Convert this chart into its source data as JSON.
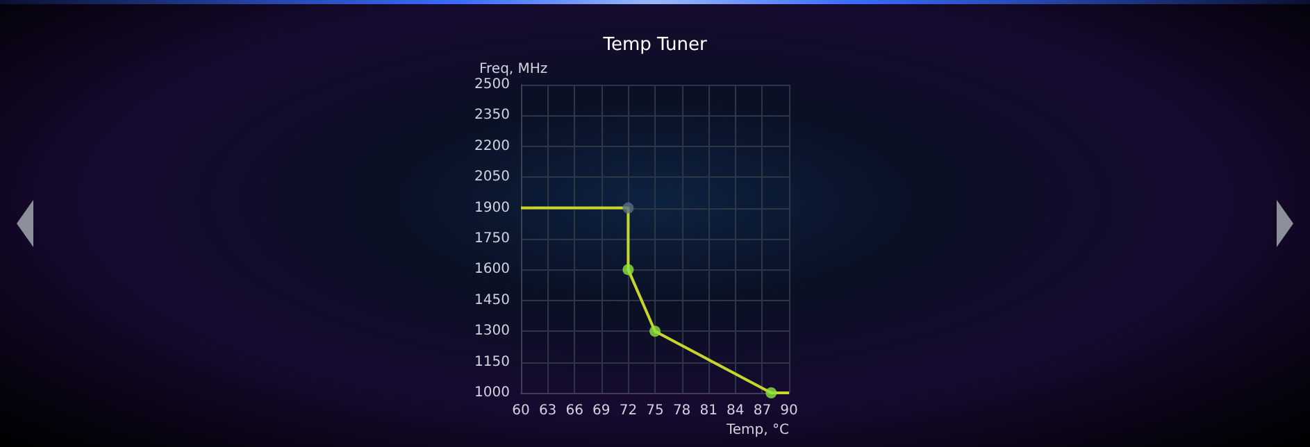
{
  "chart_data": {
    "type": "line",
    "title": "Temp Tuner",
    "xlabel": "Temp, °C",
    "ylabel": "Freq, MHz",
    "series": [
      {
        "color": "#c8d62a",
        "x": [
          60,
          72,
          72,
          75,
          88,
          90
        ],
        "values": [
          1900,
          1900,
          1600,
          1300,
          1000,
          1000
        ],
        "marker": "none"
      },
      {
        "type": "scatter",
        "colors": [
          "#5a6f86",
          "#8fe33c",
          "#8fe33c",
          "#8fe33c"
        ],
        "x": [
          72,
          72,
          75,
          88
        ],
        "values": [
          1900,
          1600,
          1300,
          1000
        ],
        "marker": "circle"
      }
    ],
    "xlim": [
      60,
      90
    ],
    "xticks": [
      60,
      63,
      66,
      69,
      72,
      75,
      78,
      81,
      84,
      87,
      90
    ],
    "ylim": [
      1000,
      2500
    ],
    "yticks": [
      1000,
      1150,
      1300,
      1450,
      1600,
      1750,
      1900,
      2050,
      2200,
      2350,
      2500
    ],
    "grid": true
  }
}
